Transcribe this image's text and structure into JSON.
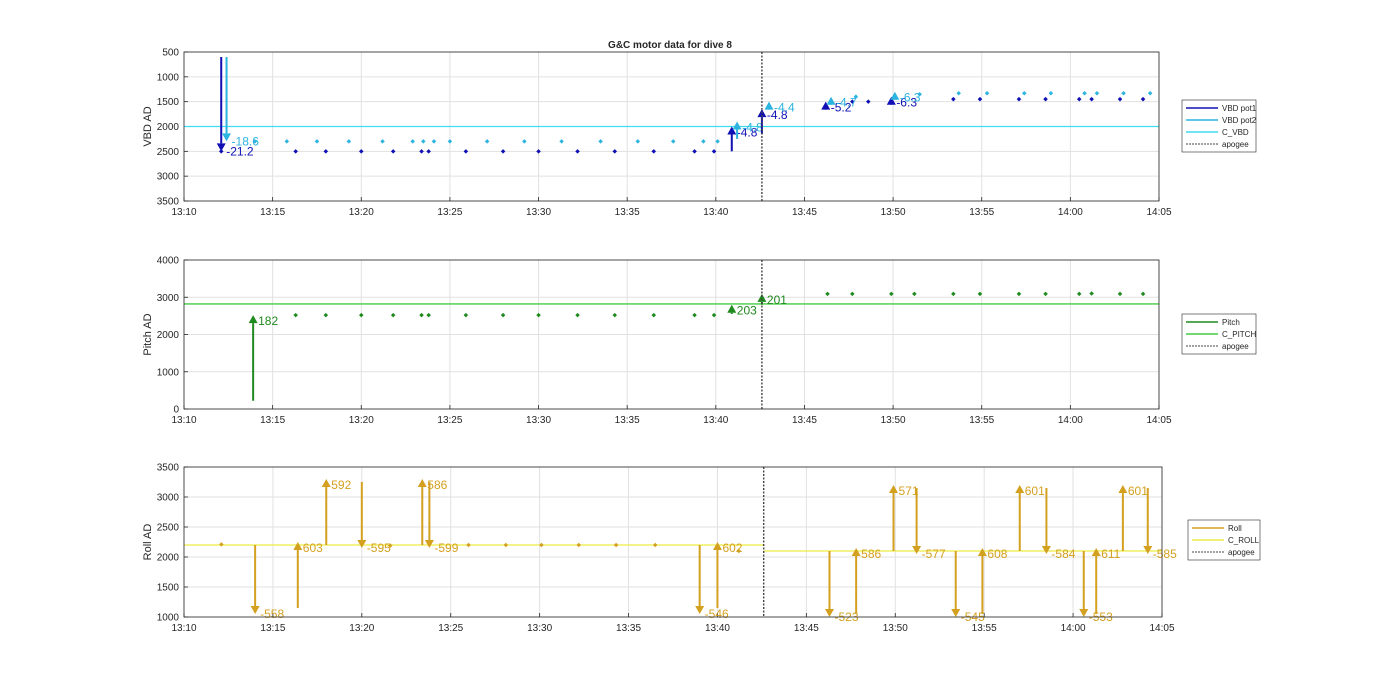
{
  "title": "G&C motor data for dive 8",
  "colors": {
    "vbd_pot1": "#1010b4",
    "vbd_pot2": "#2cb4e0",
    "c_vbd": "#40dcf0",
    "pitch": "#1f8a1f",
    "c_pitch": "#44cc44",
    "roll": "#d4a020",
    "c_roll": "#ecec44",
    "apogee": "#444444"
  },
  "chart_data": [
    {
      "type": "scatter",
      "name": "vbd",
      "ylabel": "VBD AD",
      "y_reversed": true,
      "ylim": [
        500,
        3500
      ],
      "yticks": [
        500,
        1000,
        1500,
        2000,
        2500,
        3000,
        3500
      ],
      "xlim": [
        "13:10",
        "14:05"
      ],
      "xticks": [
        "13:10",
        "13:15",
        "13:20",
        "13:25",
        "13:30",
        "13:35",
        "13:40",
        "13:45",
        "13:50",
        "13:55",
        "14:00",
        "14:05"
      ],
      "grid": true,
      "legend": [
        "VBD pot1",
        "VBD pot2",
        "C_VBD",
        "apogee"
      ],
      "legend_position": "right",
      "apogee": "13:42.6",
      "reference_line": {
        "name": "C_VBD",
        "y": 2000
      },
      "series": [
        {
          "name": "VBD pot1",
          "points": [
            [
              "13:12.1",
              2500
            ],
            [
              "13:16.3",
              2500
            ],
            [
              "13:18.0",
              2500
            ],
            [
              "13:20.0",
              2500
            ],
            [
              "13:21.8",
              2500
            ],
            [
              "13:23.4",
              2500
            ],
            [
              "13:23.8",
              2500
            ],
            [
              "13:25.9",
              2500
            ],
            [
              "13:28.0",
              2500
            ],
            [
              "13:30.0",
              2500
            ],
            [
              "13:32.2",
              2500
            ],
            [
              "13:34.3",
              2500
            ],
            [
              "13:36.5",
              2500
            ],
            [
              "13:38.8",
              2500
            ],
            [
              "13:39.9",
              2500
            ],
            [
              "13:47.7",
              1500
            ],
            [
              "13:48.6",
              1500
            ],
            [
              "13:53.4",
              1450
            ],
            [
              "13:54.9",
              1450
            ],
            [
              "13:57.1",
              1450
            ],
            [
              "13:58.6",
              1450
            ],
            [
              "14:00.5",
              1450
            ],
            [
              "14:01.2",
              1450
            ],
            [
              "14:02.8",
              1450
            ],
            [
              "14:04.1",
              1450
            ]
          ]
        },
        {
          "name": "VBD pot2",
          "points": [
            [
              "13:14.0",
              2300
            ],
            [
              "13:15.8",
              2300
            ],
            [
              "13:17.5",
              2300
            ],
            [
              "13:19.3",
              2300
            ],
            [
              "13:21.2",
              2300
            ],
            [
              "13:22.9",
              2300
            ],
            [
              "13:25.0",
              2300
            ],
            [
              "13:23.5",
              2300
            ],
            [
              "13:24.1",
              2300
            ],
            [
              "13:27.1",
              2300
            ],
            [
              "13:29.2",
              2300
            ],
            [
              "13:31.3",
              2300
            ],
            [
              "13:33.5",
              2300
            ],
            [
              "13:35.6",
              2300
            ],
            [
              "13:37.6",
              2300
            ],
            [
              "13:39.3",
              2300
            ],
            [
              "13:40.1",
              2300
            ],
            [
              "13:47.9",
              1400
            ],
            [
              "13:51.5",
              1350
            ],
            [
              "13:53.7",
              1330
            ],
            [
              "13:55.3",
              1330
            ],
            [
              "13:57.4",
              1330
            ],
            [
              "13:58.9",
              1330
            ],
            [
              "14:00.8",
              1330
            ],
            [
              "14:01.5",
              1330
            ],
            [
              "14:03.0",
              1330
            ],
            [
              "14:04.5",
              1330
            ]
          ]
        }
      ],
      "arrows": [
        {
          "series": "VBD pot1",
          "x": "13:12.1",
          "from": 600,
          "to": 2500,
          "label": "-21.2"
        },
        {
          "series": "VBD pot2",
          "x": "13:12.4",
          "from": 600,
          "to": 2300,
          "label": "-18.6"
        },
        {
          "series": "VBD pot1",
          "x": "13:40.9",
          "from": 2500,
          "to": 2000,
          "label": "-4.8"
        },
        {
          "series": "VBD pot2",
          "x": "13:41.2",
          "from": 2250,
          "to": 1900,
          "label": "-4.8"
        },
        {
          "series": "VBD pot1",
          "x": "13:42.6",
          "from": 2150,
          "to": 1650,
          "label": "-4.8"
        },
        {
          "series": "VBD pot2",
          "x": "13:43.0",
          "from": 1650,
          "to": 1500,
          "label": "-4.4"
        },
        {
          "series": "VBD pot1",
          "x": "13:46.2",
          "from": 1600,
          "to": 1500,
          "label": "-5.2"
        },
        {
          "series": "VBD pot2",
          "x": "13:46.5",
          "from": 1450,
          "to": 1400,
          "label": "-4.7"
        },
        {
          "series": "VBD pot1",
          "x": "13:49.9",
          "from": 1450,
          "to": 1400,
          "label": "-6.3"
        },
        {
          "series": "VBD pot2",
          "x": "13:50.1",
          "from": 1350,
          "to": 1300,
          "label": "-6.3"
        }
      ]
    },
    {
      "type": "scatter",
      "name": "pitch",
      "ylabel": "Pitch AD",
      "ylim": [
        0,
        4000
      ],
      "yticks": [
        0,
        1000,
        2000,
        3000,
        4000
      ],
      "xlim": [
        "13:10",
        "14:05"
      ],
      "xticks": [
        "13:10",
        "13:15",
        "13:20",
        "13:25",
        "13:30",
        "13:35",
        "13:40",
        "13:45",
        "13:50",
        "13:55",
        "14:00",
        "14:05"
      ],
      "grid": true,
      "legend": [
        "Pitch",
        "C_PITCH",
        "apogee"
      ],
      "legend_position": "right",
      "apogee": "13:42.6",
      "reference_line": {
        "name": "C_PITCH",
        "y": 2820
      },
      "series": [
        {
          "name": "Pitch",
          "points": [
            [
              "13:16.3",
              2520
            ],
            [
              "13:18.0",
              2520
            ],
            [
              "13:20.0",
              2520
            ],
            [
              "13:21.8",
              2520
            ],
            [
              "13:23.4",
              2520
            ],
            [
              "13:23.8",
              2520
            ],
            [
              "13:25.9",
              2520
            ],
            [
              "13:28.0",
              2520
            ],
            [
              "13:30.0",
              2520
            ],
            [
              "13:32.2",
              2520
            ],
            [
              "13:34.3",
              2520
            ],
            [
              "13:36.5",
              2520
            ],
            [
              "13:38.8",
              2520
            ],
            [
              "13:39.9",
              2520
            ],
            [
              "13:46.3",
              3090
            ],
            [
              "13:47.7",
              3090
            ],
            [
              "13:49.9",
              3090
            ],
            [
              "13:51.2",
              3090
            ],
            [
              "13:53.4",
              3090
            ],
            [
              "13:54.9",
              3090
            ],
            [
              "13:57.1",
              3090
            ],
            [
              "13:58.6",
              3090
            ],
            [
              "14:00.5",
              3090
            ],
            [
              "14:01.2",
              3100
            ],
            [
              "14:02.8",
              3090
            ],
            [
              "14:04.1",
              3090
            ]
          ]
        }
      ],
      "arrows": [
        {
          "series": "Pitch",
          "x": "13:13.9",
          "from": 220,
          "to": 2520,
          "label": "182"
        },
        {
          "series": "Pitch",
          "x": "13:40.9",
          "from": 2550,
          "to": 2800,
          "label": "203"
        },
        {
          "series": "Pitch",
          "x": "13:42.6",
          "from": 2800,
          "to": 3090,
          "label": "201"
        }
      ]
    },
    {
      "type": "scatter",
      "name": "roll",
      "ylabel": "Roll AD",
      "ylim": [
        1000,
        3500
      ],
      "yticks": [
        1000,
        1500,
        2000,
        2500,
        3000,
        3500
      ],
      "xlim": [
        "13:10",
        "14:05"
      ],
      "xticks": [
        "13:10",
        "13:15",
        "13:20",
        "13:25",
        "13:30",
        "13:35",
        "13:40",
        "13:45",
        "13:50",
        "13:55",
        "14:00",
        "14:05"
      ],
      "grid": true,
      "legend": [
        "Roll",
        "C_ROLL",
        "apogee"
      ],
      "legend_position": "right",
      "apogee": "13:42.6",
      "reference_lines": [
        {
          "name": "C_ROLL",
          "x_from": "13:10",
          "x_to": "13:42.6",
          "y": 2200
        },
        {
          "name": "C_ROLL",
          "x_from": "13:42.6",
          "x_to": "14:05",
          "y": 2100
        }
      ],
      "series": [
        {
          "name": "Roll",
          "points": [
            [
              "13:12.1",
              2210
            ],
            [
              "13:21.6",
              2190
            ],
            [
              "13:26.0",
              2200
            ],
            [
              "13:28.1",
              2200
            ],
            [
              "13:30.1",
              2200
            ],
            [
              "13:32.2",
              2200
            ],
            [
              "13:34.3",
              2200
            ],
            [
              "13:36.5",
              2200
            ],
            [
              "13:41.2",
              2100
            ]
          ]
        }
      ],
      "arrows": [
        {
          "series": "Roll",
          "x": "13:14.0",
          "from": 2200,
          "to": 1050,
          "label": "-558"
        },
        {
          "series": "Roll",
          "x": "13:16.4",
          "from": 1150,
          "to": 2250,
          "label": "603"
        },
        {
          "series": "Roll",
          "x": "13:18.0",
          "from": 2200,
          "to": 3300,
          "label": "592"
        },
        {
          "series": "Roll",
          "x": "13:20.0",
          "from": 3250,
          "to": 2150,
          "label": "-595"
        },
        {
          "series": "Roll",
          "x": "13:23.4",
          "from": 2200,
          "to": 3300,
          "label": "586"
        },
        {
          "series": "Roll",
          "x": "13:23.8",
          "from": 3250,
          "to": 2150,
          "label": "-599"
        },
        {
          "series": "Roll",
          "x": "13:39.0",
          "from": 2200,
          "to": 1050,
          "label": "-546"
        },
        {
          "series": "Roll",
          "x": "13:40.0",
          "from": 1150,
          "to": 2250,
          "label": "602"
        },
        {
          "series": "Roll",
          "x": "13:46.3",
          "from": 2100,
          "to": 1000,
          "label": "-523"
        },
        {
          "series": "Roll",
          "x": "13:47.8",
          "from": 1050,
          "to": 2150,
          "label": "586"
        },
        {
          "series": "Roll",
          "x": "13:49.9",
          "from": 2100,
          "to": 3200,
          "label": "571"
        },
        {
          "series": "Roll",
          "x": "13:51.2",
          "from": 3150,
          "to": 2050,
          "label": "-577"
        },
        {
          "series": "Roll",
          "x": "13:53.4",
          "from": 2100,
          "to": 1000,
          "label": "-545"
        },
        {
          "series": "Roll",
          "x": "13:54.9",
          "from": 1050,
          "to": 2150,
          "label": "608"
        },
        {
          "series": "Roll",
          "x": "13:57.0",
          "from": 2100,
          "to": 3200,
          "label": "601"
        },
        {
          "series": "Roll",
          "x": "13:58.5",
          "from": 3150,
          "to": 2050,
          "label": "-584"
        },
        {
          "series": "Roll",
          "x": "14:00.6",
          "from": 2100,
          "to": 1000,
          "label": "-553"
        },
        {
          "series": "Roll",
          "x": "14:01.3",
          "from": 1050,
          "to": 2150,
          "label": "611"
        },
        {
          "series": "Roll",
          "x": "14:02.8",
          "from": 2100,
          "to": 3200,
          "label": "601"
        },
        {
          "series": "Roll",
          "x": "14:04.2",
          "from": 3150,
          "to": 2050,
          "label": "-585"
        }
      ]
    }
  ]
}
